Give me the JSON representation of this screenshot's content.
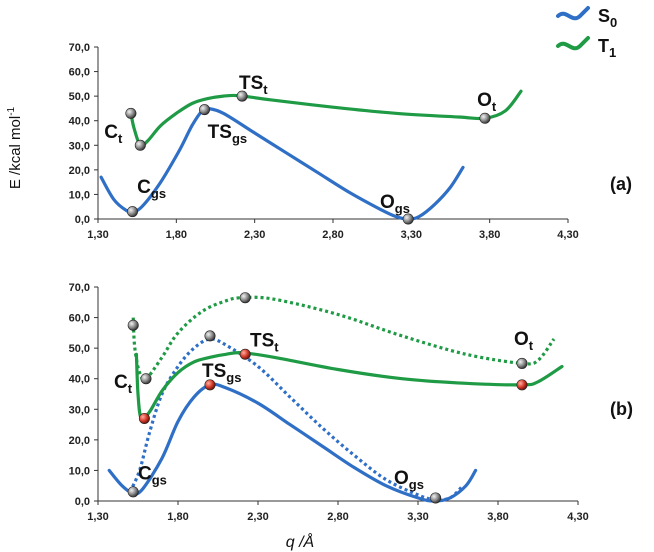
{
  "colors": {
    "s0": "#2f6fc6",
    "t1": "#1f9a45",
    "point_grey": "#8a8a8a",
    "point_red": "#d63a2a",
    "axis": "#333333"
  },
  "legend": [
    {
      "key": "s0",
      "label": "S",
      "sub": "0"
    },
    {
      "key": "t1",
      "label": "T",
      "sub": "1"
    }
  ],
  "y_axis_label": "E /kcal mol",
  "y_axis_label_sup": "-1",
  "x_axis_label": "q /Å",
  "chart_data": [
    {
      "type": "line",
      "panel_label": "(a)",
      "xlim": [
        1.3,
        4.3
      ],
      "ylim": [
        0,
        70
      ],
      "x_ticks": [
        "1,30",
        "1,80",
        "2,30",
        "2,80",
        "3,30",
        "3,80",
        "4,30"
      ],
      "y_ticks": [
        "0,0",
        "10,0",
        "20,0",
        "30,0",
        "40,0",
        "50,0",
        "60,0",
        "70,0"
      ],
      "series": [
        {
          "name": "S0",
          "color_key": "s0",
          "style": "solid",
          "points": [
            [
              1.32,
              17
            ],
            [
              1.4,
              8
            ],
            [
              1.48,
              3.5
            ],
            [
              1.52,
              3
            ],
            [
              1.58,
              5
            ],
            [
              1.7,
              15
            ],
            [
              1.82,
              28
            ],
            [
              1.9,
              38
            ],
            [
              1.97,
              44.5
            ],
            [
              2.0,
              45
            ],
            [
              2.1,
              43
            ],
            [
              2.3,
              35
            ],
            [
              2.5,
              27
            ],
            [
              2.7,
              19
            ],
            [
              2.9,
              11
            ],
            [
              3.1,
              4
            ],
            [
              3.2,
              1
            ],
            [
              3.28,
              0
            ],
            [
              3.35,
              1
            ],
            [
              3.45,
              6
            ],
            [
              3.55,
              13
            ],
            [
              3.63,
              21
            ]
          ]
        },
        {
          "name": "T1",
          "color_key": "t1",
          "style": "solid",
          "points": [
            [
              1.51,
              43
            ],
            [
              1.53,
              37
            ],
            [
              1.57,
              30
            ],
            [
              1.62,
              32
            ],
            [
              1.7,
              38
            ],
            [
              1.8,
              43
            ],
            [
              1.9,
              47
            ],
            [
              2.0,
              49
            ],
            [
              2.1,
              50
            ],
            [
              2.2,
              50.2
            ],
            [
              2.4,
              48.5
            ],
            [
              2.8,
              45.5
            ],
            [
              3.2,
              43
            ],
            [
              3.6,
              41.5
            ],
            [
              3.77,
              41
            ],
            [
              3.9,
              44
            ],
            [
              4.0,
              52
            ]
          ]
        }
      ],
      "markers": [
        {
          "x": 1.52,
          "y": 3,
          "color_key": "point_grey"
        },
        {
          "x": 1.51,
          "y": 43,
          "color_key": "point_grey"
        },
        {
          "x": 1.57,
          "y": 30,
          "color_key": "point_grey"
        },
        {
          "x": 1.98,
          "y": 44.5,
          "color_key": "point_grey"
        },
        {
          "x": 2.22,
          "y": 50,
          "color_key": "point_grey"
        },
        {
          "x": 3.28,
          "y": 0,
          "color_key": "point_grey"
        },
        {
          "x": 3.77,
          "y": 41,
          "color_key": "point_grey"
        }
      ],
      "labels": [
        {
          "text": "C",
          "sub": "gs",
          "x": 1.55,
          "y": 10.5
        },
        {
          "text": "C",
          "sub": "t",
          "x": 1.34,
          "y": 33
        },
        {
          "text": "TS",
          "sub": "gs",
          "x": 2.0,
          "y": 33
        },
        {
          "text": "TS",
          "sub": "t",
          "x": 2.2,
          "y": 53
        },
        {
          "text": "O",
          "sub": "gs",
          "x": 3.1,
          "y": 4.5
        },
        {
          "text": "O",
          "sub": "t",
          "x": 3.72,
          "y": 46
        }
      ]
    },
    {
      "type": "line",
      "panel_label": "(b)",
      "xlim": [
        1.3,
        4.3
      ],
      "ylim": [
        0,
        70
      ],
      "x_ticks": [
        "1,30",
        "1,80",
        "2,30",
        "2,80",
        "3,30",
        "3,80",
        "4,30"
      ],
      "y_ticks": [
        "0,0",
        "10,0",
        "20,0",
        "30,0",
        "40,0",
        "50,0",
        "60,0",
        "70,0"
      ],
      "series": [
        {
          "name": "S0",
          "color_key": "s0",
          "style": "solid",
          "points": [
            [
              1.37,
              10
            ],
            [
              1.45,
              5
            ],
            [
              1.52,
              2.5
            ],
            [
              1.58,
              4
            ],
            [
              1.7,
              14
            ],
            [
              1.8,
              26
            ],
            [
              1.9,
              34
            ],
            [
              2.0,
              38
            ],
            [
              2.1,
              37
            ],
            [
              2.3,
              32
            ],
            [
              2.5,
              25
            ],
            [
              2.7,
              18
            ],
            [
              2.9,
              11
            ],
            [
              3.1,
              5
            ],
            [
              3.3,
              1
            ],
            [
              3.4,
              0
            ],
            [
              3.5,
              1
            ],
            [
              3.6,
              5
            ],
            [
              3.66,
              10
            ]
          ]
        },
        {
          "name": "S0",
          "color_key": "s0",
          "style": "dotted",
          "points": [
            [
              1.5,
              3
            ],
            [
              1.56,
              10
            ],
            [
              1.62,
              22
            ],
            [
              1.7,
              35
            ],
            [
              1.8,
              44
            ],
            [
              1.9,
              50
            ],
            [
              2.0,
              53
            ],
            [
              2.1,
              51
            ],
            [
              2.3,
              44
            ],
            [
              2.5,
              34
            ],
            [
              2.7,
              24
            ],
            [
              2.9,
              15
            ],
            [
              3.1,
              7
            ],
            [
              3.3,
              2
            ],
            [
              3.4,
              0.5
            ],
            [
              3.5,
              1
            ],
            [
              3.58,
              5
            ]
          ]
        },
        {
          "name": "T1",
          "color_key": "t1",
          "style": "solid",
          "points": [
            [
              1.54,
              48
            ],
            [
              1.55,
              35
            ],
            [
              1.57,
              27
            ],
            [
              1.62,
              29
            ],
            [
              1.7,
              36
            ],
            [
              1.8,
              42
            ],
            [
              1.9,
              45.5
            ],
            [
              2.0,
              47
            ],
            [
              2.1,
              48
            ],
            [
              2.2,
              48.5
            ],
            [
              2.4,
              47
            ],
            [
              2.8,
              43
            ],
            [
              3.2,
              40
            ],
            [
              3.6,
              38.5
            ],
            [
              3.95,
              38
            ],
            [
              4.05,
              39
            ],
            [
              4.2,
              44
            ]
          ]
        },
        {
          "name": "T1",
          "color_key": "t1",
          "style": "dotted",
          "points": [
            [
              1.52,
              60
            ],
            [
              1.53,
              50
            ],
            [
              1.56,
              42
            ],
            [
              1.6,
              40
            ],
            [
              1.7,
              47
            ],
            [
              1.8,
              55
            ],
            [
              1.95,
              62
            ],
            [
              2.1,
              65.5
            ],
            [
              2.2,
              66.5
            ],
            [
              2.4,
              66
            ],
            [
              2.8,
              61
            ],
            [
              3.2,
              54
            ],
            [
              3.6,
              48
            ],
            [
              3.95,
              45
            ],
            [
              4.05,
              46
            ],
            [
              4.15,
              53
            ]
          ]
        }
      ],
      "markers": [
        {
          "x": 1.52,
          "y": 3,
          "color_key": "point_grey"
        },
        {
          "x": 1.52,
          "y": 57.5,
          "color_key": "point_grey"
        },
        {
          "x": 1.6,
          "y": 40,
          "color_key": "point_grey"
        },
        {
          "x": 1.59,
          "y": 27,
          "color_key": "point_red"
        },
        {
          "x": 2.0,
          "y": 38,
          "color_key": "point_red"
        },
        {
          "x": 2.0,
          "y": 54,
          "color_key": "point_grey"
        },
        {
          "x": 2.22,
          "y": 66.5,
          "color_key": "point_grey"
        },
        {
          "x": 2.22,
          "y": 48,
          "color_key": "point_red"
        },
        {
          "x": 3.41,
          "y": 1,
          "color_key": "point_grey"
        },
        {
          "x": 3.95,
          "y": 45,
          "color_key": "point_grey"
        },
        {
          "x": 3.95,
          "y": 38,
          "color_key": "point_red"
        }
      ],
      "labels": [
        {
          "text": "C",
          "sub": "gs",
          "x": 1.55,
          "y": 7
        },
        {
          "text": "C",
          "sub": "t",
          "x": 1.4,
          "y": 37
        },
        {
          "text": "TS",
          "sub": "gs",
          "x": 1.95,
          "y": 40.5
        },
        {
          "text": "TS",
          "sub": "t",
          "x": 2.25,
          "y": 50.5
        },
        {
          "text": "O",
          "sub": "gs",
          "x": 3.15,
          "y": 5.5
        },
        {
          "text": "O",
          "sub": "t",
          "x": 3.9,
          "y": 51
        }
      ]
    }
  ]
}
